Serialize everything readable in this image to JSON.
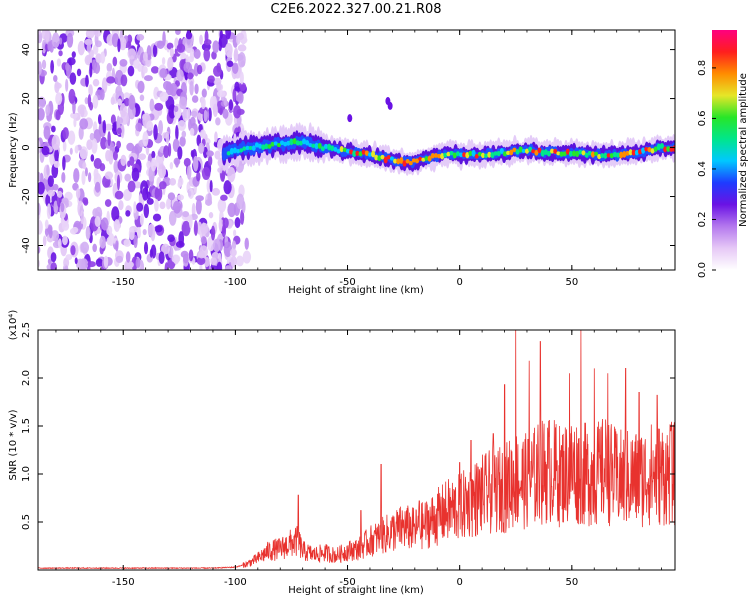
{
  "title": "C2E6.2022.327.00.21.R08",
  "colors": {
    "snr_line": "#e8322e",
    "cmap": [
      "#ffffff",
      "#e6c8f6",
      "#b478ee",
      "#6a12e4",
      "#1e3cff",
      "#00c8ff",
      "#00e68c",
      "#28e628",
      "#e6e628",
      "#ff8c00",
      "#ff1e1e",
      "#ff007f"
    ]
  },
  "chart_data": [
    {
      "type": "heatmap",
      "name": "spectrogram",
      "xlabel": "Height of straight line (km)",
      "ylabel": "Frequency (Hz)",
      "xlim": [
        -188,
        96
      ],
      "ylim": [
        -50,
        48
      ],
      "xticks": [
        -150,
        -100,
        -50,
        0,
        50
      ],
      "xtick_labels": [
        "-150",
        "-100",
        "-50",
        "0",
        "50"
      ],
      "yticks": [
        -40,
        -20,
        0,
        20,
        40
      ],
      "ytick_labels": [
        "-40",
        "-20",
        "0",
        "20",
        "40"
      ],
      "colorbar": {
        "label": "Normalized spectral amplitude",
        "range": [
          0.0,
          0.95
        ],
        "ticks": [
          0.0,
          0.2,
          0.4,
          0.6,
          0.8
        ],
        "tick_labels": [
          "0.0",
          "0.2",
          "0.4",
          "0.6",
          "0.8"
        ]
      },
      "noise_region_x": [
        -188,
        -102
      ],
      "signal_track": {
        "x": [
          -105,
          -95,
          -85,
          -75,
          -70,
          -65,
          -55,
          -45,
          -35,
          -25,
          -15,
          -5,
          0,
          10,
          20,
          30,
          40,
          50,
          60,
          70,
          80,
          90,
          96
        ],
        "freq": [
          -2,
          0,
          1,
          2,
          2.5,
          1,
          -1,
          -2,
          -4,
          -6,
          -5,
          -2,
          -3,
          -3,
          -2,
          -1,
          -2,
          -2,
          -3,
          -3,
          -2,
          0,
          0
        ]
      }
    },
    {
      "type": "line",
      "name": "snr",
      "xlabel": "Height of straight line (km)",
      "ylabel": "SNR (10 * v/v)",
      "scale_label": "(x10⁴)",
      "xlim": [
        -188,
        96
      ],
      "ylim": [
        0,
        2.5
      ],
      "xticks": [
        -150,
        -100,
        -50,
        0,
        50
      ],
      "xtick_labels": [
        "-150",
        "-100",
        "-50",
        "0",
        "50"
      ],
      "yticks": [
        0.5,
        1.0,
        1.5,
        2.0,
        2.5
      ],
      "ytick_labels": [
        "0.5",
        "1.0",
        "1.5",
        "2.0",
        "2.5"
      ],
      "series": [
        {
          "x": [
            -188,
            -150,
            -110,
            -100,
            -95,
            -90,
            -85,
            -80,
            -75,
            -72,
            -70,
            -65,
            -60,
            -55,
            -50,
            -45,
            -40,
            -35,
            -30,
            -25,
            -20,
            -15,
            -10,
            -5,
            0,
            5,
            10,
            15,
            20,
            25,
            30,
            35,
            40,
            45,
            50,
            55,
            60,
            65,
            70,
            75,
            80,
            85,
            90,
            96
          ],
          "base": [
            0.02,
            0.02,
            0.02,
            0.03,
            0.06,
            0.12,
            0.2,
            0.22,
            0.28,
            0.3,
            0.2,
            0.16,
            0.18,
            0.15,
            0.2,
            0.22,
            0.3,
            0.35,
            0.4,
            0.45,
            0.42,
            0.48,
            0.55,
            0.62,
            0.65,
            0.72,
            0.78,
            0.82,
            0.85,
            0.95,
            0.92,
            1.0,
            1.05,
            0.98,
            1.05,
            1.0,
            0.98,
            1.05,
            0.95,
            0.95,
            0.95,
            1.0,
            1.0,
            1.0
          ],
          "peaks": [
            [
              -72,
              0.78
            ],
            [
              -44,
              0.62
            ],
            [
              -35,
              1.1
            ],
            [
              -18,
              0.72
            ],
            [
              0,
              1.12
            ],
            [
              5,
              1.35
            ],
            [
              15,
              1.42
            ],
            [
              20,
              1.93
            ],
            [
              25,
              2.5
            ],
            [
              31,
              2.18
            ],
            [
              36,
              2.38
            ],
            [
              43,
              1.52
            ],
            [
              49,
              2.05
            ],
            [
              54,
              2.5
            ],
            [
              60,
              2.1
            ],
            [
              66,
              2.05
            ],
            [
              74,
              2.1
            ],
            [
              80,
              1.85
            ],
            [
              88,
              1.82
            ],
            [
              94,
              1.45
            ]
          ]
        }
      ]
    }
  ]
}
